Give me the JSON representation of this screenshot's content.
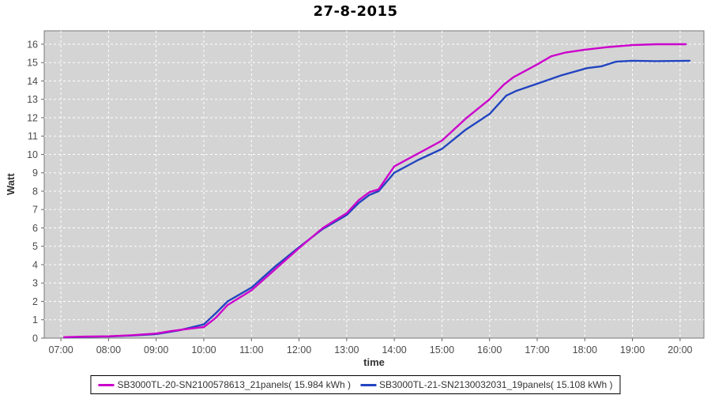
{
  "title": "27-8-2015",
  "axes": {
    "x_label": "time",
    "y_label": "Watt"
  },
  "colors": {
    "plot_background": "#d4d4d4",
    "gridline": "#ffffff",
    "plot_border": "#777777",
    "tick": "#666666",
    "tick_label": "#4a4a4a",
    "series_magenta": "#cc00cc",
    "series_blue": "#2244c0"
  },
  "legend": {
    "items": [
      {
        "label": "SB3000TL-20-SN2100578613_21panels( 15.984 kWh )",
        "color": "#cc00cc"
      },
      {
        "label": "SB3000TL-21-SN2130032031_19panels( 15.108 kWh )",
        "color": "#2244c0"
      }
    ]
  },
  "chart_data": {
    "type": "line",
    "title": "27-8-2015",
    "xlabel": "time",
    "ylabel": "Watt",
    "grid": true,
    "legend_position": "bottom-center",
    "xlim_hours": [
      6.65,
      20.5
    ],
    "ylim": [
      0,
      16.73
    ],
    "x_ticks": [
      {
        "h": 7,
        "label": "07:00"
      },
      {
        "h": 8,
        "label": "08:00"
      },
      {
        "h": 9,
        "label": "09:00"
      },
      {
        "h": 10,
        "label": "10:00"
      },
      {
        "h": 11,
        "label": "11:00"
      },
      {
        "h": 12,
        "label": "12:00"
      },
      {
        "h": 13,
        "label": "13:00"
      },
      {
        "h": 14,
        "label": "14:00"
      },
      {
        "h": 15,
        "label": "15:00"
      },
      {
        "h": 16,
        "label": "16:00"
      },
      {
        "h": 17,
        "label": "17:00"
      },
      {
        "h": 18,
        "label": "18:00"
      },
      {
        "h": 19,
        "label": "19:00"
      },
      {
        "h": 20,
        "label": "20:00"
      }
    ],
    "y_ticks": [
      0,
      1,
      2,
      3,
      4,
      5,
      6,
      7,
      8,
      9,
      10,
      11,
      12,
      13,
      14,
      15,
      16
    ],
    "series": [
      {
        "name": "SB3000TL-21-SN2130032031_19panels( 15.108 kWh )",
        "color": "#2244c0",
        "points": [
          [
            7.07,
            0.04
          ],
          [
            7.5,
            0.07
          ],
          [
            8.0,
            0.09
          ],
          [
            8.5,
            0.14
          ],
          [
            9.0,
            0.22
          ],
          [
            9.3,
            0.35
          ],
          [
            9.48,
            0.42
          ],
          [
            10.0,
            0.75
          ],
          [
            10.25,
            1.35
          ],
          [
            10.5,
            2.0
          ],
          [
            11.0,
            2.75
          ],
          [
            11.5,
            3.9
          ],
          [
            12.0,
            4.95
          ],
          [
            12.5,
            5.95
          ],
          [
            13.0,
            6.7
          ],
          [
            13.25,
            7.35
          ],
          [
            13.48,
            7.8
          ],
          [
            13.67,
            8.0
          ],
          [
            14.0,
            9.0
          ],
          [
            14.5,
            9.7
          ],
          [
            15.0,
            10.3
          ],
          [
            15.5,
            11.35
          ],
          [
            16.0,
            12.2
          ],
          [
            16.35,
            13.2
          ],
          [
            16.55,
            13.45
          ],
          [
            17.0,
            13.85
          ],
          [
            17.5,
            14.3
          ],
          [
            18.05,
            14.7
          ],
          [
            18.35,
            14.8
          ],
          [
            18.65,
            15.05
          ],
          [
            19.0,
            15.1
          ],
          [
            19.5,
            15.08
          ],
          [
            20.2,
            15.1
          ]
        ]
      },
      {
        "name": "SB3000TL-20-SN2100578613_21panels( 15.984 kWh )",
        "color": "#cc00cc",
        "points": [
          [
            7.07,
            0.05
          ],
          [
            7.5,
            0.08
          ],
          [
            8.0,
            0.1
          ],
          [
            8.5,
            0.16
          ],
          [
            9.0,
            0.25
          ],
          [
            9.3,
            0.38
          ],
          [
            9.65,
            0.5
          ],
          [
            10.0,
            0.6
          ],
          [
            10.25,
            1.1
          ],
          [
            10.5,
            1.8
          ],
          [
            11.0,
            2.6
          ],
          [
            11.5,
            3.75
          ],
          [
            12.0,
            4.9
          ],
          [
            12.5,
            6.0
          ],
          [
            13.0,
            6.8
          ],
          [
            13.25,
            7.5
          ],
          [
            13.48,
            7.95
          ],
          [
            13.67,
            8.1
          ],
          [
            14.0,
            9.35
          ],
          [
            14.5,
            10.05
          ],
          [
            15.0,
            10.75
          ],
          [
            15.5,
            11.95
          ],
          [
            16.0,
            13.0
          ],
          [
            16.3,
            13.8
          ],
          [
            16.5,
            14.2
          ],
          [
            17.0,
            14.9
          ],
          [
            17.3,
            15.35
          ],
          [
            17.6,
            15.55
          ],
          [
            18.0,
            15.7
          ],
          [
            18.5,
            15.85
          ],
          [
            19.0,
            15.95
          ],
          [
            19.5,
            16.0
          ],
          [
            20.12,
            16.0
          ]
        ]
      }
    ]
  }
}
